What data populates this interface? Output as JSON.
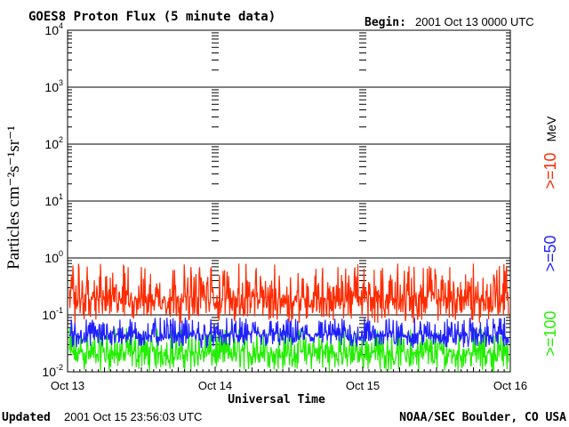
{
  "header": {
    "title": "GOES8 Proton Flux (5 minute data)",
    "begin_label": "Begin:",
    "begin_value": "2001 Oct 13 0000 UTC"
  },
  "footer": {
    "updated_label": "Updated",
    "updated_value": "2001 Oct 15 23:56:03 UTC",
    "source": "NOAA/SEC Boulder, CO USA"
  },
  "colors": {
    "ge10": "#ff2a00",
    "ge50": "#2020ff",
    "ge100": "#22ee00",
    "axis": "#000000"
  },
  "chart_data": {
    "type": "line",
    "title": "GOES8 Proton Flux (5 minute data)",
    "xlabel": "Universal Time",
    "ylabel": "Particles cm⁻²s⁻¹sr⁻¹",
    "y_scale": "log",
    "ylim": [
      0.01,
      10000
    ],
    "y_ticks": [
      {
        "value": 0.01,
        "base": "10",
        "exp": "-2"
      },
      {
        "value": 0.1,
        "base": "10",
        "exp": "-1"
      },
      {
        "value": 1,
        "base": "10",
        "exp": "0"
      },
      {
        "value": 10,
        "base": "10",
        "exp": "1"
      },
      {
        "value": 100,
        "base": "10",
        "exp": "2"
      },
      {
        "value": 1000,
        "base": "10",
        "exp": "3"
      },
      {
        "value": 10000,
        "base": "10",
        "exp": "4"
      }
    ],
    "x_ticks": [
      "Oct 13",
      "Oct 14",
      "Oct 15",
      "Oct 16"
    ],
    "grid": true,
    "legend_placement": "right",
    "legend_unit": "MeV",
    "series": [
      {
        "name": ">=10",
        "color": "#ff2a00",
        "typical": 0.2,
        "min": 0.07,
        "max": 0.8
      },
      {
        "name": ">=50",
        "color": "#2020ff",
        "typical": 0.045,
        "min": 0.025,
        "max": 0.09
      },
      {
        "name": ">=100",
        "color": "#22ee00",
        "typical": 0.022,
        "min": 0.01,
        "max": 0.06
      }
    ]
  }
}
